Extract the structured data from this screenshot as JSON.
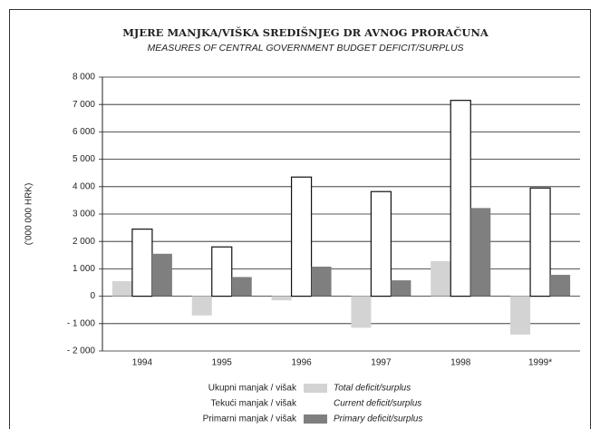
{
  "chart_data": {
    "type": "bar",
    "title": "MJERE MANJKA/VIŠKA SREDIŠNJEG DR AVNOG PRORAČUNA",
    "subtitle": "MEASURES OF CENTRAL GOVERNMENT BUDGET DEFICIT/SURPLUS",
    "y_label": "('000 000 HRK)",
    "categories": [
      "1994",
      "1995",
      "1996",
      "1997",
      "1998",
      "1999*"
    ],
    "series": [
      {
        "name": "Total deficit/surplus",
        "local_name": "Ukupni manjak / višak",
        "color": "#d3d3d3",
        "values": [
          550,
          -700,
          -150,
          -1150,
          1280,
          -1400
        ]
      },
      {
        "name": "Current deficit/surplus",
        "local_name": "Tekući manjak / višak",
        "color": "#ffffff",
        "values": [
          2450,
          1800,
          4350,
          3820,
          7150,
          3950
        ]
      },
      {
        "name": "Primary deficit/surplus",
        "local_name": "Primarni manjak / višak",
        "color": "#7f7f7f",
        "values": [
          1550,
          700,
          1080,
          580,
          3220,
          780
        ]
      }
    ],
    "ylim": [
      -2000,
      8000
    ],
    "yticks": [
      {
        "value": -2000,
        "label": "- 2 000"
      },
      {
        "value": -1000,
        "label": "- 1 000"
      },
      0,
      {
        "value": 1000,
        "label": "1 000"
      },
      {
        "value": 2000,
        "label": "2 000"
      },
      {
        "value": 3000,
        "label": "3 000"
      },
      {
        "value": 4000,
        "label": "4 000"
      },
      {
        "value": 5000,
        "label": "5 000"
      },
      {
        "value": 6000,
        "label": "6 000"
      },
      {
        "value": 7000,
        "label": "7 000"
      },
      {
        "value": 8000,
        "label": "8 000"
      }
    ],
    "grid": true
  }
}
